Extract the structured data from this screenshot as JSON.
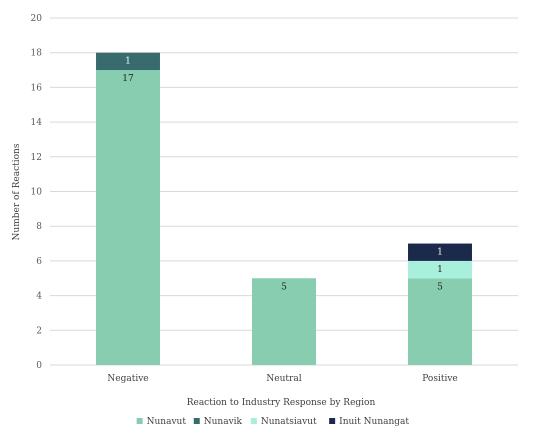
{
  "chart_data": {
    "type": "bar",
    "stacked": true,
    "categories": [
      "Negative",
      "Neutral",
      "Positive"
    ],
    "series": [
      {
        "name": "Nunavut",
        "color": "#88cdb0",
        "label_color": "#1f1f1f",
        "values": [
          17,
          5,
          5
        ]
      },
      {
        "name": "Nunavik",
        "color": "#386b6d",
        "label_color": "#ffffff",
        "values": [
          1,
          0,
          0
        ]
      },
      {
        "name": "Nunatsiavut",
        "color": "#a8f0dc",
        "label_color": "#1f1f1f",
        "values": [
          0,
          0,
          1
        ]
      },
      {
        "name": "Inuit Nunangat",
        "color": "#1b2a4a",
        "label_color": "#ffffff",
        "values": [
          0,
          0,
          1
        ]
      }
    ],
    "ylabel": "Number of Reactions",
    "xlabel": "Reaction to Industry Response by Region",
    "ylim": [
      0,
      20
    ],
    "yticks": [
      0,
      2,
      4,
      6,
      8,
      10,
      12,
      14,
      16,
      18,
      20
    ],
    "grid": true,
    "legend_position": "bottom"
  }
}
